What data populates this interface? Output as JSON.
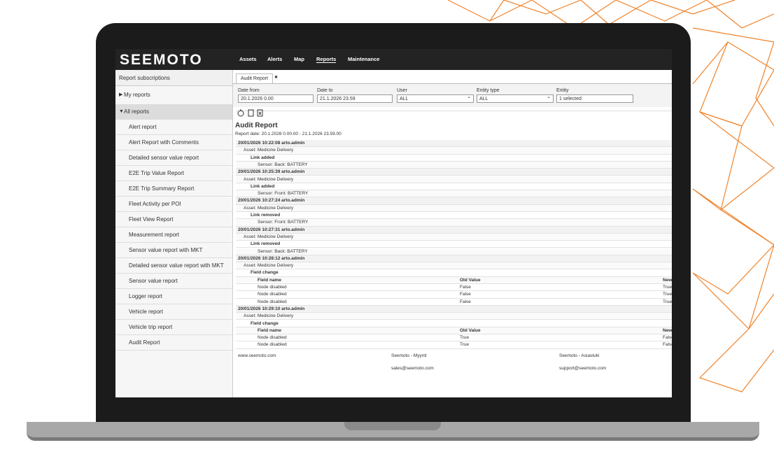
{
  "header": {
    "logo": "SEEMOTO",
    "nav": [
      "Assets",
      "Alerts",
      "Map",
      "Reports",
      "Maintenance"
    ],
    "active_nav": "Reports"
  },
  "sidebar": {
    "title": "Report subscriptions",
    "groups": [
      "My reports",
      "All reports"
    ],
    "items": [
      "Alert report",
      "Alert Report with Comments",
      "Detailed sensor value report",
      "E2E Trip Value Report",
      "E2E Trip Summary Report",
      "Fleet Activity per POI",
      "Fleet View Report",
      "Measurement report",
      "Sensor value report with MKT",
      "Detailed sensor value report with MKT",
      "Sensor value report",
      "Logger report",
      "Vehicle report",
      "Vehicle trip report",
      "Audit Report"
    ]
  },
  "tab": {
    "title": "Audit Report",
    "close": "✖"
  },
  "filters": [
    {
      "label": "Date from",
      "value": "20.1.2026 0.00",
      "dropdown": false
    },
    {
      "label": "Date to",
      "value": "21.1.2026 23.59",
      "dropdown": false
    },
    {
      "label": "User",
      "value": "ALL",
      "dropdown": true
    },
    {
      "label": "Entity type",
      "value": "ALL",
      "dropdown": true
    },
    {
      "label": "Entity",
      "value": "1 selected",
      "dropdown": false
    }
  ],
  "report": {
    "title": "Audit Report",
    "date": "Report date: 20.1.2026 0.00.00 - 21.1.2026 23.59.00",
    "entries": [
      {
        "header": "20/01/2026 10:22:08 arto.admin",
        "asset": "Asset: Medicine Delivery",
        "action": "Link added",
        "detail": "Sensor: Back: BATTERY"
      },
      {
        "header": "20/01/2026 10:25:39 arto.admin",
        "asset": "Asset: Medicine Delivery",
        "action": "Link added",
        "detail": "Sensor: Front: BATTERY"
      },
      {
        "header": "20/01/2026 10:27:24 arto.admin",
        "asset": "Asset: Medicine Delivery",
        "action": "Link removed",
        "detail": "Sensor: Front: BATTERY"
      },
      {
        "header": "20/01/2026 10:27:31 arto.admin",
        "asset": "Asset: Medicine Delivery",
        "action": "Link removed",
        "detail": "Sensor: Back: BATTERY"
      },
      {
        "header": "20/01/2026 10:28:12 arto.admin",
        "asset": "Asset: Medicine Delivery",
        "action": "Field change",
        "table": {
          "columns": [
            "Field name",
            "Old Value",
            "New Value"
          ],
          "rows": [
            [
              "Node disabled",
              "False",
              "True"
            ],
            [
              "Node disabled",
              "False",
              "True"
            ],
            [
              "Node disabled",
              "False",
              "True"
            ]
          ]
        }
      },
      {
        "header": "20/01/2026 10:29:10 arto.admin",
        "asset": "Asset: Medicine Delivery",
        "action": "Field change",
        "table": {
          "columns": [
            "Field name",
            "Old Value",
            "New Value"
          ],
          "rows": [
            [
              "Node disabled",
              "True",
              "False"
            ],
            [
              "Node disabled",
              "True",
              "False"
            ]
          ]
        }
      }
    ]
  },
  "footer": {
    "website": "www.seemoto.com",
    "sales": [
      "Seemoto - Myynti",
      "sales@seemoto.com"
    ],
    "support": [
      "Seemoto - Asiastuki",
      "support@seemoto.com"
    ]
  }
}
